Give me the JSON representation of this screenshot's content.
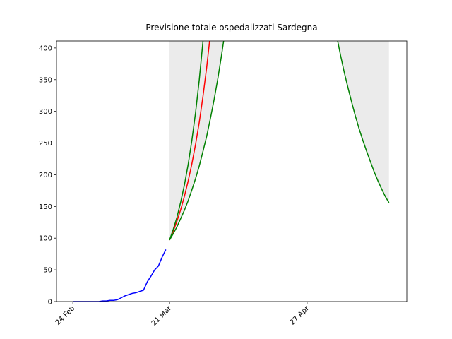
{
  "chart_data": {
    "type": "line",
    "title": "Previsione totale ospedalizzati Sardegna",
    "xlim": [
      -4.4,
      89.8
    ],
    "ylim": [
      0,
      411
    ],
    "xticks": [
      {
        "value": 0,
        "label": "24 Feb"
      },
      {
        "value": 26,
        "label": "21 Mar"
      },
      {
        "value": 63,
        "label": "27 Apr"
      }
    ],
    "yticks": [
      0,
      50,
      100,
      150,
      200,
      250,
      300,
      350,
      400
    ],
    "band_fill": "#ebebeb",
    "series": [
      {
        "color": "#0000ff",
        "x": [
          0,
          1,
          2,
          3,
          4,
          5,
          6,
          7,
          8,
          9,
          10,
          11,
          12,
          13,
          14,
          15,
          16,
          17,
          18,
          19,
          20,
          21,
          22,
          23,
          24,
          25
        ],
        "values": [
          0,
          0,
          0,
          0,
          0,
          0,
          0,
          0,
          1,
          1,
          2,
          2,
          3,
          6,
          9,
          11,
          13,
          14,
          16,
          18,
          31,
          40,
          50,
          56,
          70,
          82
        ]
      },
      {
        "color": "#ff0000",
        "x": [
          26,
          27,
          28,
          29,
          30,
          31,
          32,
          33,
          34,
          35,
          36,
          37,
          38
        ],
        "values": [
          97,
          111,
          127,
          145,
          166,
          190,
          217,
          248,
          283,
          324,
          370,
          423,
          null
        ]
      },
      {
        "color": "#008000",
        "x": [
          26,
          27,
          28,
          29,
          30,
          31,
          32,
          33,
          34,
          35,
          36,
          37,
          38,
          39,
          40,
          41,
          42,
          43,
          70,
          71,
          72,
          73,
          74,
          75,
          76,
          77,
          78,
          79,
          80,
          81,
          82,
          83,
          84,
          85
        ],
        "values": [
          97,
          107,
          118,
          131,
          144,
          159,
          176,
          194,
          214,
          237,
          261,
          289,
          319,
          352,
          389,
          429,
          474,
          null,
          436,
          417,
          388,
          361,
          337,
          314,
          292,
          272,
          254,
          237,
          221,
          205,
          191,
          178,
          166,
          156
        ]
      },
      {
        "color": "#008000",
        "x": [
          26,
          27,
          28,
          29,
          30,
          31,
          32,
          33,
          34,
          35,
          36,
          37
        ],
        "values": [
          97,
          114,
          133,
          157,
          184,
          216,
          254,
          298,
          350,
          411,
          485,
          null
        ]
      }
    ]
  }
}
